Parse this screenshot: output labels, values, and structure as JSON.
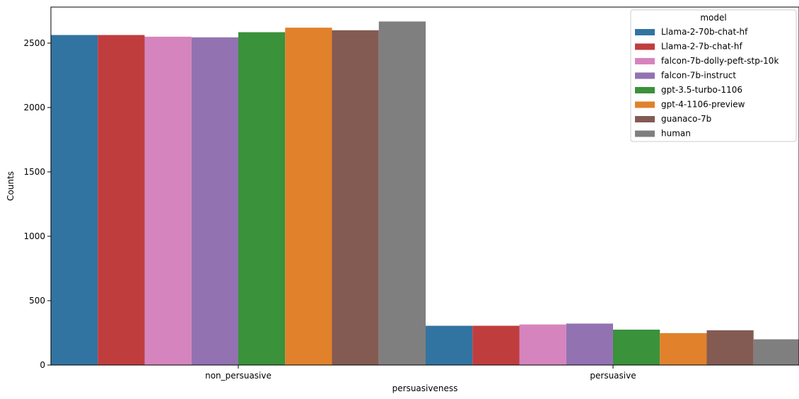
{
  "chart_data": {
    "type": "bar",
    "title": "",
    "xlabel": "persuasiveness",
    "ylabel": "Counts",
    "categories": [
      "non_persuasive",
      "persuasive"
    ],
    "ylim": [
      0,
      2780
    ],
    "yticks": [
      0,
      500,
      1000,
      1500,
      2000,
      2500
    ],
    "grid": false,
    "legend": {
      "title": "model",
      "placement": "top-right"
    },
    "series": [
      {
        "name": "Llama-2-70b-chat-hf",
        "color": "#3274a1",
        "values": [
          2563,
          305
        ]
      },
      {
        "name": "Llama-2-7b-chat-hf",
        "color": "#c03d3e",
        "values": [
          2563,
          305
        ]
      },
      {
        "name": "falcon-7b-dolly-peft-stp-10k",
        "color": "#d684bd",
        "values": [
          2550,
          315
        ]
      },
      {
        "name": "falcon-7b-instruct",
        "color": "#9372b2",
        "values": [
          2545,
          322
        ]
      },
      {
        "name": "gpt-3.5-turbo-1106",
        "color": "#3a923a",
        "values": [
          2585,
          275
        ]
      },
      {
        "name": "gpt-4-1106-preview",
        "color": "#e1812c",
        "values": [
          2620,
          248
        ]
      },
      {
        "name": "guanaco-7b",
        "color": "#845b53",
        "values": [
          2600,
          270
        ]
      },
      {
        "name": "human",
        "color": "#7f7f7f",
        "values": [
          2668,
          200
        ]
      }
    ]
  }
}
